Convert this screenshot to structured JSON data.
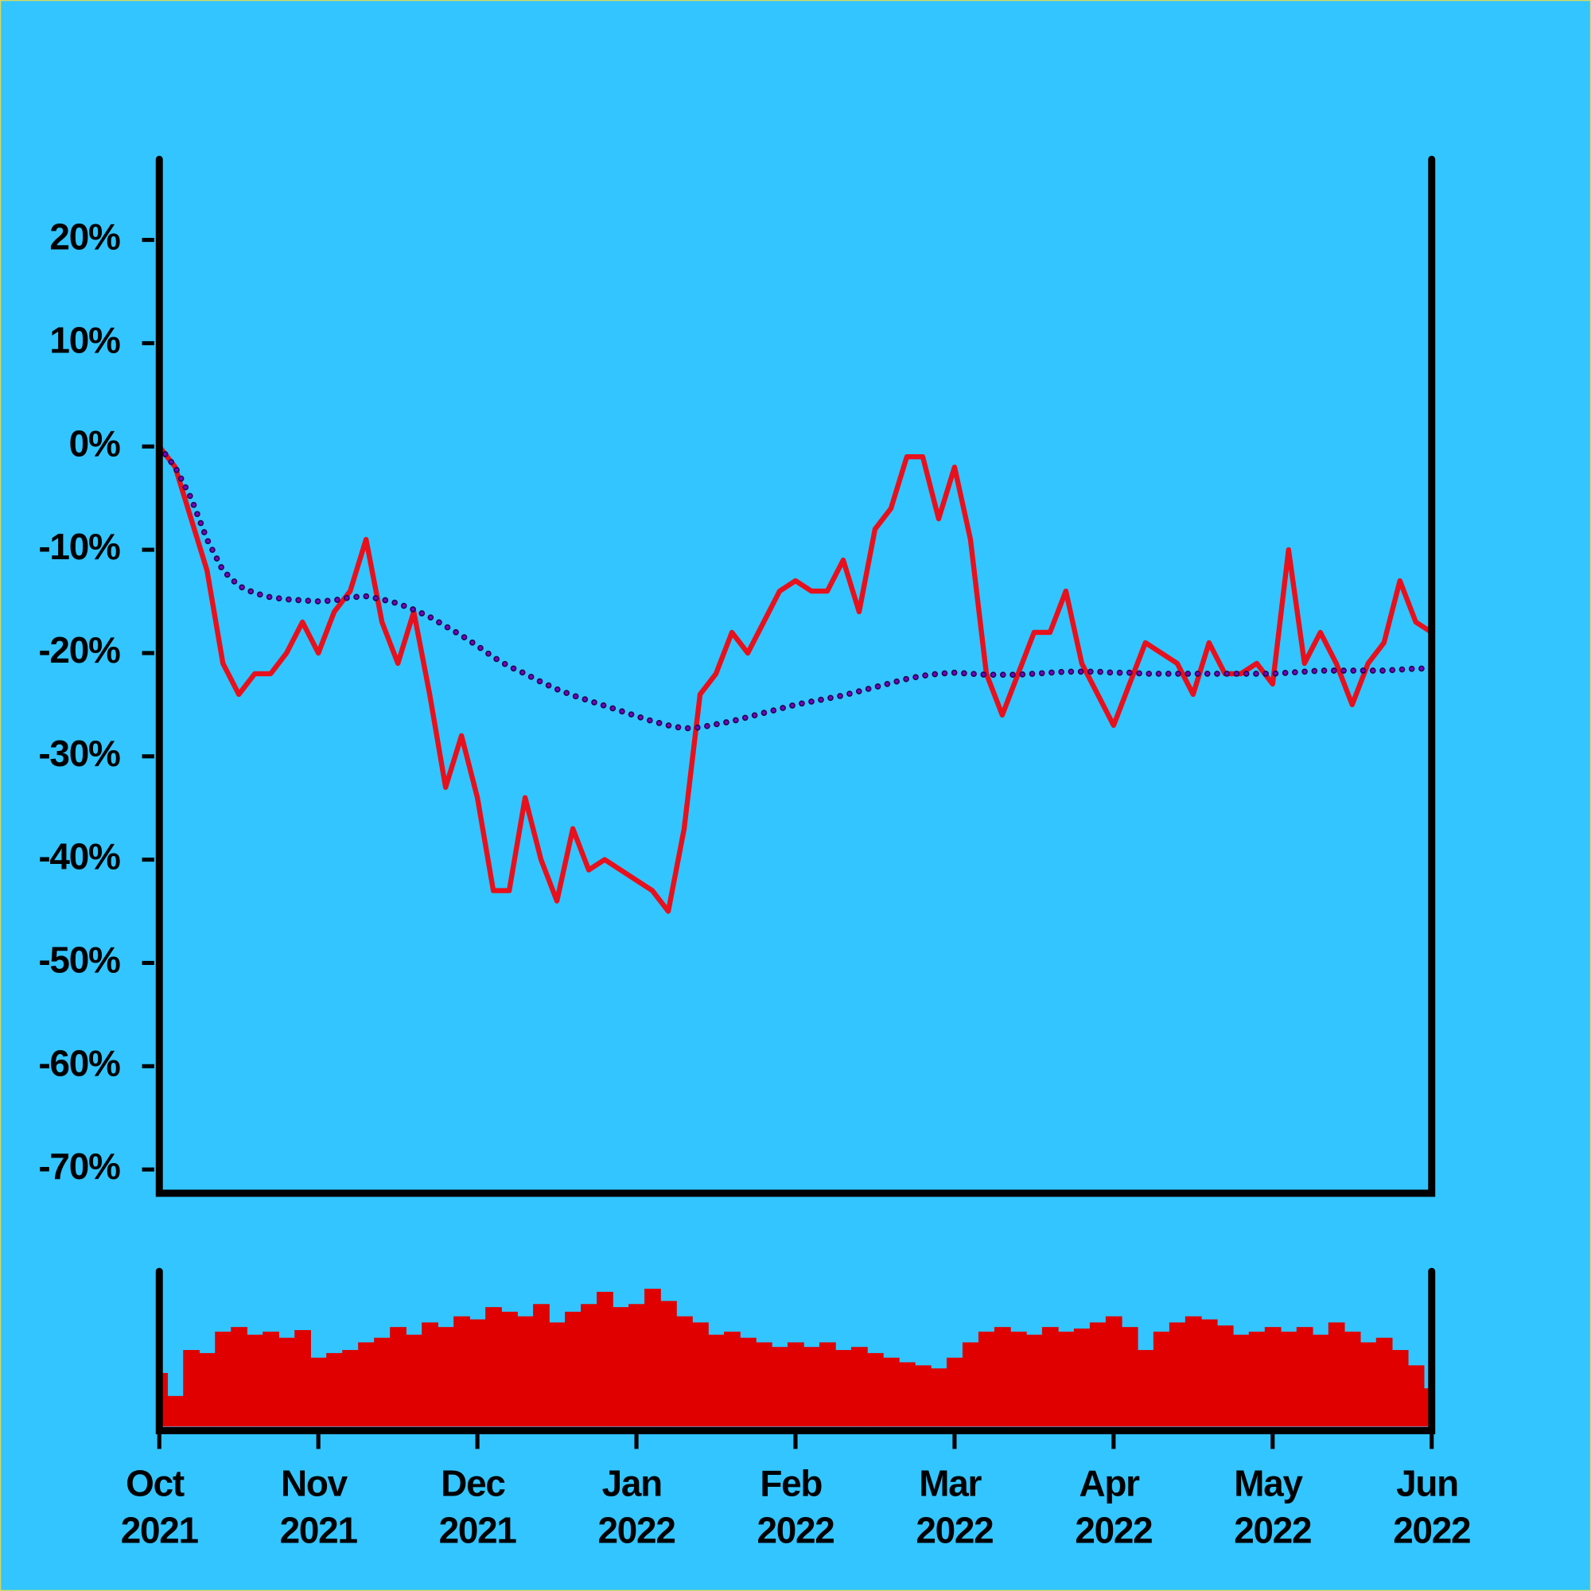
{
  "chart_data": [
    {
      "type": "line",
      "x": [
        0,
        0.1,
        0.2,
        0.3,
        0.4,
        0.5,
        0.6,
        0.7,
        0.8,
        0.9,
        1,
        1.1,
        1.2,
        1.3,
        1.4,
        1.5,
        1.6,
        1.7,
        1.8,
        1.9,
        2,
        2.1,
        2.2,
        2.3,
        2.4,
        2.5,
        2.6,
        2.7,
        2.8,
        2.9,
        3,
        3.1,
        3.2,
        3.3,
        3.4,
        3.5,
        3.6,
        3.7,
        3.8,
        3.9,
        4,
        4.1,
        4.2,
        4.3,
        4.4,
        4.5,
        4.6,
        4.7,
        4.8,
        4.9,
        5,
        5.1,
        5.2,
        5.3,
        5.4,
        5.5,
        5.6,
        5.7,
        5.8,
        5.9,
        6,
        6.1,
        6.2,
        6.3,
        6.4,
        6.5,
        6.6,
        6.7,
        6.8,
        6.9,
        7,
        7.1,
        7.2,
        7.3,
        7.4,
        7.5,
        7.6,
        7.7,
        7.8,
        7.9,
        8
      ],
      "series": [
        {
          "color": "#e8101c",
          "values": [
            0,
            -2,
            -7,
            -12,
            -21,
            -24,
            -22,
            -22,
            -20,
            -17,
            -20,
            -16,
            -14,
            -9,
            -17,
            -21,
            -16,
            -24,
            -33,
            -28,
            -34,
            -43,
            -43,
            -34,
            -40,
            -44,
            -37,
            -41,
            -40,
            -41,
            -42,
            -43,
            -45,
            -37,
            -24,
            -22,
            -18,
            -20,
            -17,
            -14,
            -13,
            -14,
            -14,
            -11,
            -16,
            -8,
            -6,
            -1,
            -1,
            -7,
            -2,
            -9,
            -22,
            -26,
            -22,
            -18,
            -18,
            -14,
            -21,
            -24,
            -27,
            -23,
            -19,
            -20,
            -21,
            -24,
            -19,
            -22,
            -22,
            -21,
            -23,
            -10,
            -21,
            -18,
            -21,
            -25,
            -21,
            -19,
            -13,
            -17,
            -18
          ]
        },
        {
          "color": "#7a00cc",
          "style": "dotted",
          "values": [
            0,
            -2,
            -5,
            -9,
            -12,
            -13.5,
            -14.2,
            -14.6,
            -14.8,
            -14.9,
            -15,
            -14.9,
            -14.6,
            -14.5,
            -14.8,
            -15.2,
            -15.8,
            -16.5,
            -17.4,
            -18.3,
            -19.3,
            -20.4,
            -21.3,
            -22,
            -22.8,
            -23.5,
            -24.1,
            -24.6,
            -25.1,
            -25.6,
            -26.1,
            -26.6,
            -27,
            -27.3,
            -27.2,
            -26.9,
            -26.6,
            -26.2,
            -25.8,
            -25.4,
            -25,
            -24.7,
            -24.4,
            -24.1,
            -23.7,
            -23.3,
            -22.9,
            -22.5,
            -22.2,
            -22,
            -21.9,
            -22,
            -22.1,
            -22.1,
            -22.1,
            -22,
            -21.9,
            -21.8,
            -21.8,
            -21.8,
            -21.9,
            -21.9,
            -22,
            -22,
            -22,
            -22,
            -22,
            -22,
            -22,
            -22,
            -22,
            -21.9,
            -21.8,
            -21.7,
            -21.7,
            -21.7,
            -21.7,
            -21.7,
            -21.6,
            -21.5,
            -21.5
          ]
        }
      ],
      "xlim": [
        0,
        8
      ],
      "ylim": [
        -72.3,
        28
      ],
      "yticks": [
        {
          "value": 20,
          "label": "20%"
        },
        {
          "value": 10,
          "label": "10%"
        },
        {
          "value": 0,
          "label": "0%"
        },
        {
          "value": -10,
          "label": "-10%"
        },
        {
          "value": -20,
          "label": "-20%"
        },
        {
          "value": -30,
          "label": "-30%"
        },
        {
          "value": -40,
          "label": "-40%"
        },
        {
          "value": -50,
          "label": "-50%"
        },
        {
          "value": -60,
          "label": "-60%"
        },
        {
          "value": -70,
          "label": "-70%"
        }
      ]
    },
    {
      "type": "bar",
      "x": [
        0,
        0.1,
        0.2,
        0.3,
        0.4,
        0.5,
        0.6,
        0.7,
        0.8,
        0.9,
        1,
        1.1,
        1.2,
        1.3,
        1.4,
        1.5,
        1.6,
        1.7,
        1.8,
        1.9,
        2,
        2.1,
        2.2,
        2.3,
        2.4,
        2.5,
        2.6,
        2.7,
        2.8,
        2.9,
        3,
        3.1,
        3.2,
        3.3,
        3.4,
        3.5,
        3.6,
        3.7,
        3.8,
        3.9,
        4,
        4.1,
        4.2,
        4.3,
        4.4,
        4.5,
        4.6,
        4.7,
        4.8,
        4.9,
        5,
        5.1,
        5.2,
        5.3,
        5.4,
        5.5,
        5.6,
        5.7,
        5.8,
        5.9,
        6,
        6.1,
        6.2,
        6.3,
        6.4,
        6.5,
        6.6,
        6.7,
        6.8,
        6.9,
        7,
        7.1,
        7.2,
        7.3,
        7.4,
        7.5,
        7.6,
        7.7,
        7.8,
        7.9,
        8
      ],
      "values": [
        35,
        20,
        50,
        48,
        62,
        65,
        60,
        62,
        58,
        63,
        45,
        48,
        50,
        55,
        58,
        65,
        60,
        68,
        65,
        72,
        70,
        78,
        75,
        72,
        80,
        68,
        75,
        80,
        88,
        78,
        80,
        90,
        82,
        72,
        68,
        60,
        62,
        58,
        55,
        52,
        55,
        52,
        55,
        50,
        52,
        48,
        45,
        42,
        40,
        38,
        45,
        55,
        62,
        65,
        62,
        60,
        65,
        62,
        64,
        68,
        72,
        65,
        50,
        62,
        68,
        72,
        70,
        66,
        60,
        62,
        65,
        62,
        65,
        60,
        68,
        62,
        55,
        58,
        50,
        40,
        25
      ],
      "color": "#e00000",
      "xlim": [
        0,
        8
      ],
      "ylim": [
        0,
        100
      ],
      "xticks": [
        {
          "value": 0,
          "label": "Oct 2021"
        },
        {
          "value": 1,
          "label": "Nov 2021"
        },
        {
          "value": 2,
          "label": "Dec 2021"
        },
        {
          "value": 3,
          "label": "Jan 2022"
        },
        {
          "value": 4,
          "label": "Feb 2022"
        },
        {
          "value": 5,
          "label": "Mar 2022"
        },
        {
          "value": 6,
          "label": "Apr 2022"
        },
        {
          "value": 7,
          "label": "May 2022"
        },
        {
          "value": 8,
          "label": "Jun 2022"
        }
      ]
    }
  ]
}
